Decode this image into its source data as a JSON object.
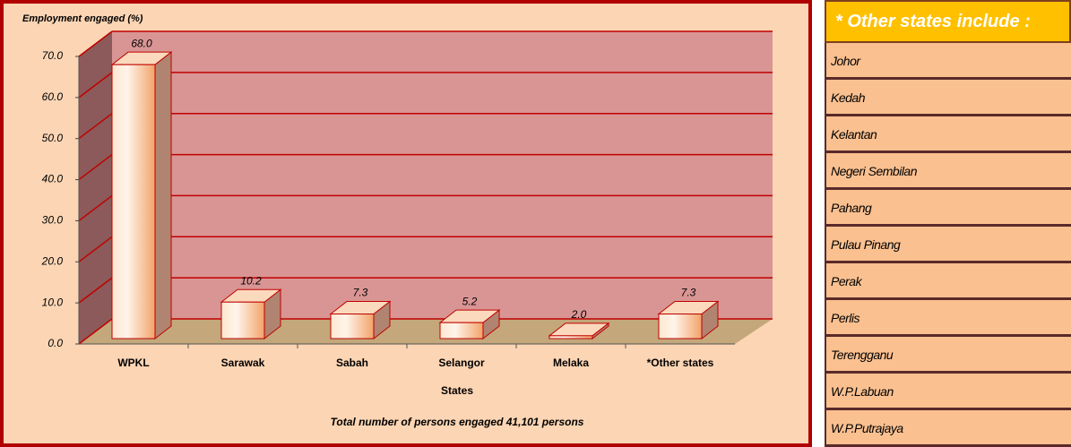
{
  "chart_data": {
    "type": "bar",
    "y_label": "Employment engaged (%)",
    "x_label": "States",
    "footnote": "Total number of persons engaged 41,101 persons",
    "categories": [
      "WPKL",
      "Sarawak",
      "Sabah",
      "Selangor",
      "Melaka",
      "*Other states"
    ],
    "values": [
      68.0,
      10.2,
      7.3,
      5.2,
      2.0,
      7.3
    ],
    "value_labels": [
      "68.0",
      "10.2",
      "7.3",
      "5.2",
      "2.0",
      "7.3"
    ],
    "color": "#f4a46a",
    "ylim": [
      0,
      70
    ],
    "yticks": [
      {
        "value": 0,
        "label": "0.0"
      },
      {
        "value": 10,
        "label": "10.0"
      },
      {
        "value": 20,
        "label": "20.0"
      },
      {
        "value": 30,
        "label": "30.0"
      },
      {
        "value": 40,
        "label": "40.0"
      },
      {
        "value": 50,
        "label": "50.0"
      },
      {
        "value": 60,
        "label": "60.0"
      },
      {
        "value": 70,
        "label": "70.0"
      }
    ],
    "grid": true
  },
  "side_panel": {
    "title": "* Other states include :",
    "items": [
      "Johor",
      "Kedah",
      "Kelantan",
      "Negeri Sembilan",
      "Pahang",
      "Pulau Pinang",
      "Perak",
      "Perlis",
      "Terengganu",
      "W.P.Labuan",
      "W.P.Putrajaya"
    ]
  }
}
